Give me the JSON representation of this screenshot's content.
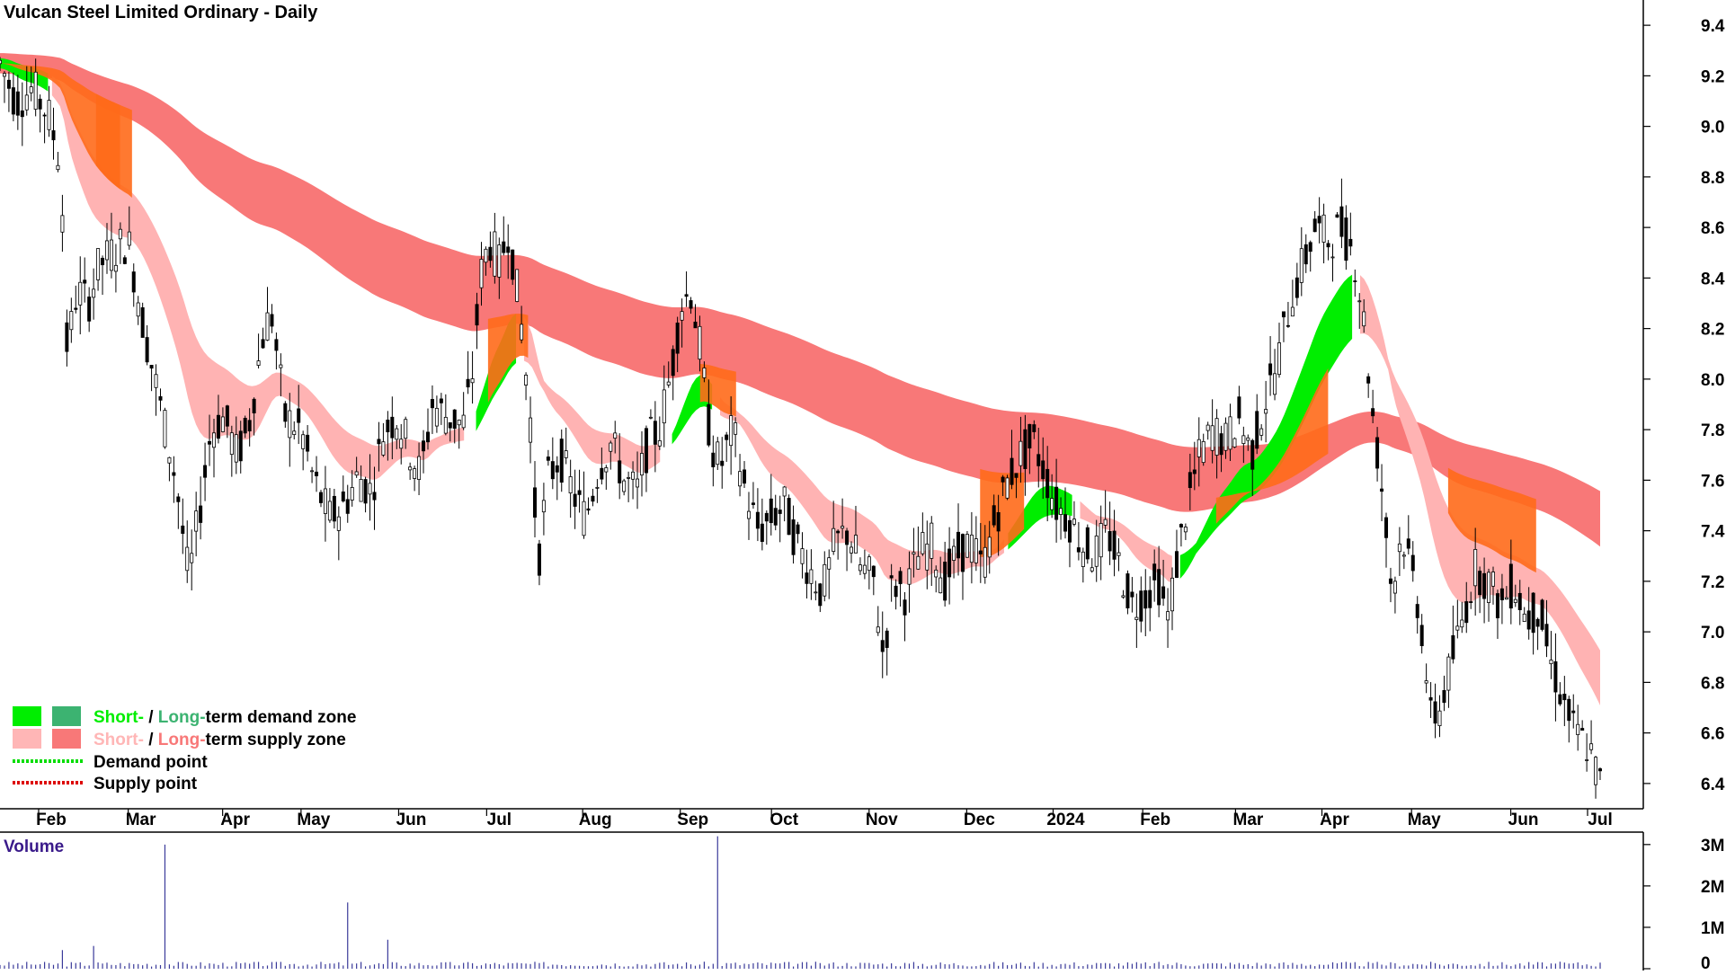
{
  "chart_data": {
    "type": "candlestick",
    "title": "Vulcan Steel Limited Ordinary - Daily",
    "price_axis": {
      "ylim": [
        6.3,
        9.5
      ],
      "ticks": [
        "9.4",
        "9.2",
        "9.0",
        "8.8",
        "8.6",
        "8.4",
        "8.2",
        "8.0",
        "7.8",
        "7.6",
        "7.4",
        "7.2",
        "7.0",
        "6.8",
        "6.6",
        "6.4"
      ]
    },
    "x_axis": {
      "ticks": [
        {
          "label": "Feb",
          "t": 0.032
        },
        {
          "label": "Mar",
          "t": 0.088
        },
        {
          "label": "Apr",
          "t": 0.147
        },
        {
          "label": "May",
          "t": 0.196
        },
        {
          "label": "Jun",
          "t": 0.257
        },
        {
          "label": "Jul",
          "t": 0.312
        },
        {
          "label": "Aug",
          "t": 0.372
        },
        {
          "label": "Sep",
          "t": 0.433
        },
        {
          "label": "Oct",
          "t": 0.49
        },
        {
          "label": "Nov",
          "t": 0.551
        },
        {
          "label": "Dec",
          "t": 0.612
        },
        {
          "label": "2024",
          "t": 0.666
        },
        {
          "label": "Feb",
          "t": 0.722
        },
        {
          "label": "Mar",
          "t": 0.78
        },
        {
          "label": "Apr",
          "t": 0.834
        },
        {
          "label": "May",
          "t": 0.89
        },
        {
          "label": "Jun",
          "t": 0.952
        },
        {
          "label": "Jul",
          "t": 1.0
        }
      ]
    },
    "price_path": [
      [
        0.0,
        9.25
      ],
      [
        0.01,
        9.1
      ],
      [
        0.02,
        9.15
      ],
      [
        0.03,
        9.05
      ],
      [
        0.038,
        8.85
      ],
      [
        0.042,
        8.1
      ],
      [
        0.048,
        8.35
      ],
      [
        0.055,
        8.3
      ],
      [
        0.062,
        8.45
      ],
      [
        0.07,
        8.5
      ],
      [
        0.08,
        8.55
      ],
      [
        0.09,
        8.2
      ],
      [
        0.1,
        7.9
      ],
      [
        0.11,
        7.6
      ],
      [
        0.118,
        7.2
      ],
      [
        0.124,
        7.45
      ],
      [
        0.132,
        7.8
      ],
      [
        0.14,
        7.85
      ],
      [
        0.148,
        7.7
      ],
      [
        0.155,
        7.8
      ],
      [
        0.165,
        8.2
      ],
      [
        0.17,
        8.25
      ],
      [
        0.178,
        7.85
      ],
      [
        0.188,
        7.8
      ],
      [
        0.196,
        7.6
      ],
      [
        0.206,
        7.45
      ],
      [
        0.215,
        7.5
      ],
      [
        0.224,
        7.62
      ],
      [
        0.232,
        7.55
      ],
      [
        0.24,
        7.8
      ],
      [
        0.248,
        7.85
      ],
      [
        0.256,
        7.72
      ],
      [
        0.263,
        7.62
      ],
      [
        0.27,
        7.9
      ],
      [
        0.28,
        7.85
      ],
      [
        0.29,
        7.82
      ],
      [
        0.296,
        8.05
      ],
      [
        0.3,
        8.4
      ],
      [
        0.306,
        8.55
      ],
      [
        0.312,
        8.45
      ],
      [
        0.318,
        8.6
      ],
      [
        0.326,
        8.2
      ],
      [
        0.332,
        7.8
      ],
      [
        0.336,
        7.25
      ],
      [
        0.342,
        7.6
      ],
      [
        0.35,
        7.7
      ],
      [
        0.358,
        7.55
      ],
      [
        0.366,
        7.45
      ],
      [
        0.374,
        7.65
      ],
      [
        0.382,
        7.75
      ],
      [
        0.39,
        7.6
      ],
      [
        0.398,
        7.55
      ],
      [
        0.405,
        7.75
      ],
      [
        0.412,
        7.8
      ],
      [
        0.42,
        8.05
      ],
      [
        0.426,
        8.3
      ],
      [
        0.432,
        8.35
      ],
      [
        0.438,
        8.1
      ],
      [
        0.444,
        7.75
      ],
      [
        0.45,
        7.65
      ],
      [
        0.458,
        7.8
      ],
      [
        0.466,
        7.55
      ],
      [
        0.474,
        7.4
      ],
      [
        0.482,
        7.45
      ],
      [
        0.49,
        7.5
      ],
      [
        0.498,
        7.35
      ],
      [
        0.506,
        7.25
      ],
      [
        0.514,
        7.15
      ],
      [
        0.522,
        7.35
      ],
      [
        0.53,
        7.4
      ],
      [
        0.538,
        7.25
      ],
      [
        0.546,
        7.2
      ],
      [
        0.552,
        6.9
      ],
      [
        0.558,
        7.2
      ],
      [
        0.566,
        7.15
      ],
      [
        0.574,
        7.3
      ],
      [
        0.582,
        7.35
      ],
      [
        0.59,
        7.2
      ],
      [
        0.598,
        7.3
      ],
      [
        0.606,
        7.35
      ],
      [
        0.614,
        7.25
      ],
      [
        0.622,
        7.45
      ],
      [
        0.63,
        7.6
      ],
      [
        0.638,
        7.7
      ],
      [
        0.646,
        7.75
      ],
      [
        0.652,
        7.65
      ],
      [
        0.66,
        7.5
      ],
      [
        0.668,
        7.45
      ],
      [
        0.676,
        7.35
      ],
      [
        0.684,
        7.3
      ],
      [
        0.692,
        7.4
      ],
      [
        0.7,
        7.25
      ],
      [
        0.708,
        7.1
      ],
      [
        0.716,
        7.15
      ],
      [
        0.724,
        7.2
      ],
      [
        0.73,
        7.05
      ],
      [
        0.736,
        7.3
      ],
      [
        0.742,
        7.5
      ],
      [
        0.75,
        7.7
      ],
      [
        0.758,
        7.8
      ],
      [
        0.766,
        7.75
      ],
      [
        0.774,
        7.85
      ],
      [
        0.782,
        7.7
      ],
      [
        0.79,
        7.9
      ],
      [
        0.798,
        8.05
      ],
      [
        0.806,
        8.3
      ],
      [
        0.814,
        8.45
      ],
      [
        0.822,
        8.6
      ],
      [
        0.83,
        8.55
      ],
      [
        0.838,
        8.6
      ],
      [
        0.846,
        8.5
      ],
      [
        0.852,
        8.25
      ],
      [
        0.858,
        7.85
      ],
      [
        0.864,
        7.55
      ],
      [
        0.87,
        7.15
      ],
      [
        0.876,
        7.4
      ],
      [
        0.882,
        7.25
      ],
      [
        0.888,
        7.05
      ],
      [
        0.894,
        6.65
      ],
      [
        0.9,
        6.7
      ],
      [
        0.906,
        6.85
      ],
      [
        0.914,
        7.05
      ],
      [
        0.922,
        7.25
      ],
      [
        0.93,
        7.2
      ],
      [
        0.938,
        7.1
      ],
      [
        0.946,
        7.2
      ],
      [
        0.954,
        7.05
      ],
      [
        0.962,
        7.1
      ],
      [
        0.968,
        6.9
      ],
      [
        0.976,
        6.75
      ],
      [
        0.984,
        6.6
      ],
      [
        0.992,
        6.55
      ],
      [
        1.0,
        6.4
      ]
    ],
    "zones": {
      "short_term_demand": [
        [
          0.0,
          0.03
        ],
        [
          0.296,
          0.324
        ],
        [
          0.418,
          0.446
        ],
        [
          0.63,
          0.672
        ],
        [
          0.736,
          0.846
        ]
      ],
      "long_term_demand": [],
      "short_term_supply": [
        [
          0.032,
          0.292
        ],
        [
          0.326,
          0.414
        ],
        [
          0.448,
          0.628
        ],
        [
          0.674,
          0.734
        ],
        [
          0.848,
          1.0
        ]
      ],
      "long_term_supply": [
        [
          0.0,
          1.0
        ]
      ]
    },
    "volume": {
      "label": "Volume",
      "ticks": [
        "3M",
        "2M",
        "1M",
        "0"
      ],
      "ylim": [
        0,
        3.3
      ],
      "units": "M",
      "spikes": [
        [
          0.104,
          3.0
        ],
        [
          0.217,
          1.6
        ],
        [
          0.242,
          0.7
        ],
        [
          0.449,
          3.2
        ],
        [
          0.04,
          0.45
        ],
        [
          0.058,
          0.55
        ]
      ]
    },
    "legend": {
      "items": [
        {
          "short": "Short-",
          "sep": " / ",
          "long": "Long-",
          "rest": "term demand zone",
          "short_color": "#00ee00",
          "long_color": "#3cb371"
        },
        {
          "short": "Short-",
          "sep": " / ",
          "long": "Long-",
          "rest": "term supply zone",
          "short_color": "#ffb6b6",
          "long_color": "#f87878"
        },
        {
          "label": "Demand point",
          "color": "#00dd00"
        },
        {
          "label": "Supply point",
          "color": "#dd0000"
        }
      ]
    },
    "colors": {
      "short_demand": "#00ee00",
      "long_demand": "#3cb371",
      "short_supply": "#ffb3b3",
      "long_supply": "#f87878",
      "mixed_band": "#ff6a1a",
      "volume_bar": "#3a3a9a",
      "candle": "#000000"
    }
  }
}
